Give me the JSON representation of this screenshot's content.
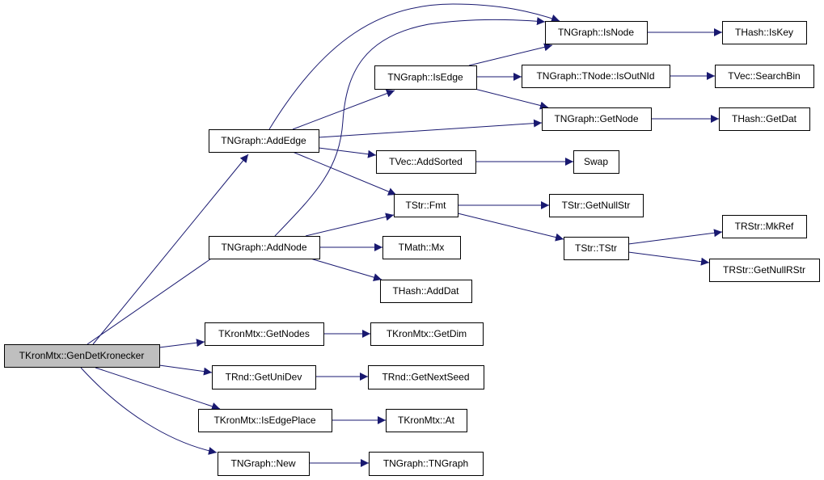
{
  "colors": {
    "edge": "#191970",
    "root_fill": "#bfbfbf",
    "node_fill": "#ffffff",
    "border": "#000000"
  },
  "nodes": [
    {
      "id": "gen",
      "label": "TKronMtx::GenDetKronecker",
      "root": true
    },
    {
      "id": "addedge",
      "label": "TNGraph::AddEdge"
    },
    {
      "id": "addnode",
      "label": "TNGraph::AddNode"
    },
    {
      "id": "getnodes",
      "label": "TKronMtx::GetNodes"
    },
    {
      "id": "getunidev",
      "label": "TRnd::GetUniDev"
    },
    {
      "id": "isedgeplace",
      "label": "TKronMtx::IsEdgePlace"
    },
    {
      "id": "new",
      "label": "TNGraph::New"
    },
    {
      "id": "isedge",
      "label": "TNGraph::IsEdge"
    },
    {
      "id": "addsorted",
      "label": "TVec::AddSorted"
    },
    {
      "id": "fmt",
      "label": "TStr::Fmt"
    },
    {
      "id": "mx",
      "label": "TMath::Mx"
    },
    {
      "id": "adddat",
      "label": "THash::AddDat"
    },
    {
      "id": "getdim",
      "label": "TKronMtx::GetDim"
    },
    {
      "id": "getnextseed",
      "label": "TRnd::GetNextSeed"
    },
    {
      "id": "at",
      "label": "TKronMtx::At"
    },
    {
      "id": "tngraph",
      "label": "TNGraph::TNGraph"
    },
    {
      "id": "isnode",
      "label": "TNGraph::IsNode"
    },
    {
      "id": "isoutnid",
      "label": "TNGraph::TNode::IsOutNId"
    },
    {
      "id": "getnode",
      "label": "TNGraph::GetNode"
    },
    {
      "id": "swap",
      "label": "Swap"
    },
    {
      "id": "getnullstr",
      "label": "TStr::GetNullStr"
    },
    {
      "id": "tstr",
      "label": "TStr::TStr"
    },
    {
      "id": "iskey",
      "label": "THash::IsKey"
    },
    {
      "id": "searchbin",
      "label": "TVec::SearchBin"
    },
    {
      "id": "getdat",
      "label": "THash::GetDat"
    },
    {
      "id": "mkref",
      "label": "TRStr::MkRef"
    },
    {
      "id": "getnullrstr",
      "label": "TRStr::GetNullRStr"
    }
  ],
  "edges": [
    {
      "from": "gen",
      "to": "addedge"
    },
    {
      "from": "gen",
      "to": "addnode"
    },
    {
      "from": "gen",
      "to": "getnodes"
    },
    {
      "from": "gen",
      "to": "getunidev"
    },
    {
      "from": "gen",
      "to": "isedgeplace"
    },
    {
      "from": "gen",
      "to": "new"
    },
    {
      "from": "addedge",
      "to": "isnode"
    },
    {
      "from": "addnode",
      "to": "isnode"
    },
    {
      "from": "addedge",
      "to": "isedge"
    },
    {
      "from": "addedge",
      "to": "getnode"
    },
    {
      "from": "addedge",
      "to": "addsorted"
    },
    {
      "from": "addedge",
      "to": "fmt"
    },
    {
      "from": "addnode",
      "to": "fmt"
    },
    {
      "from": "addnode",
      "to": "mx"
    },
    {
      "from": "addnode",
      "to": "adddat"
    },
    {
      "from": "isedge",
      "to": "isnode"
    },
    {
      "from": "isedge",
      "to": "isoutnid"
    },
    {
      "from": "isedge",
      "to": "getnode"
    },
    {
      "from": "addsorted",
      "to": "swap"
    },
    {
      "from": "fmt",
      "to": "getnullstr"
    },
    {
      "from": "fmt",
      "to": "tstr"
    },
    {
      "from": "tstr",
      "to": "mkref"
    },
    {
      "from": "tstr",
      "to": "getnullrstr"
    },
    {
      "from": "isnode",
      "to": "iskey"
    },
    {
      "from": "isoutnid",
      "to": "searchbin"
    },
    {
      "from": "getnode",
      "to": "getdat"
    },
    {
      "from": "getnodes",
      "to": "getdim"
    },
    {
      "from": "getunidev",
      "to": "getnextseed"
    },
    {
      "from": "isedgeplace",
      "to": "at"
    },
    {
      "from": "new",
      "to": "tngraph"
    }
  ]
}
